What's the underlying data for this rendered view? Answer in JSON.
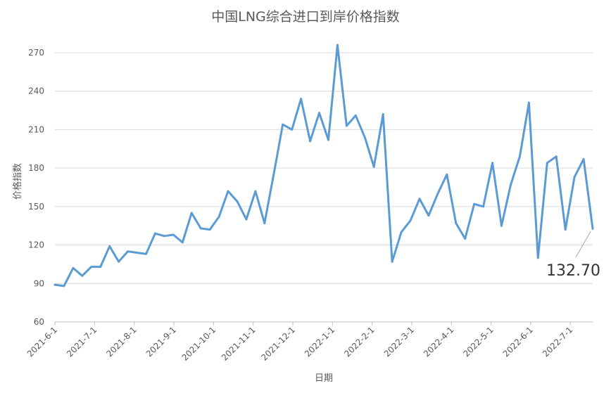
{
  "chart_data": {
    "type": "line",
    "title": "中国LNG综合进口到岸价格指数",
    "xlabel": "日期",
    "ylabel": "价格指数",
    "ylim": [
      60,
      270
    ],
    "yticks": [
      60,
      90,
      120,
      150,
      180,
      210,
      240,
      270
    ],
    "xtick_labels": [
      "2021-6-1",
      "2021-7-1",
      "2021-8-1",
      "2021-9-1",
      "2021-10-1",
      "2021-11-1",
      "2021-12-1",
      "2022-1-1",
      "2022-2-1",
      "2022-3-1",
      "2022-4-1",
      "2022-5-1",
      "2022-6-1",
      "2022-7-1"
    ],
    "grid": true,
    "legend": "none",
    "line_color": "#5B9BD5",
    "series": [
      {
        "values": [
          89,
          88,
          102,
          96,
          103,
          103,
          119,
          107,
          115,
          114,
          113,
          129,
          127,
          128,
          122,
          145,
          133,
          132,
          142,
          162,
          154,
          140,
          162,
          137,
          175,
          214,
          210,
          234,
          201,
          223,
          202,
          276,
          213,
          221,
          204,
          181,
          222,
          107,
          130,
          139,
          156,
          143,
          160,
          175,
          137,
          125,
          152,
          150,
          184,
          135,
          167,
          189,
          231,
          110,
          184,
          189,
          132,
          173,
          187,
          132.7
        ]
      }
    ],
    "annotation": {
      "text": "132.70"
    }
  }
}
